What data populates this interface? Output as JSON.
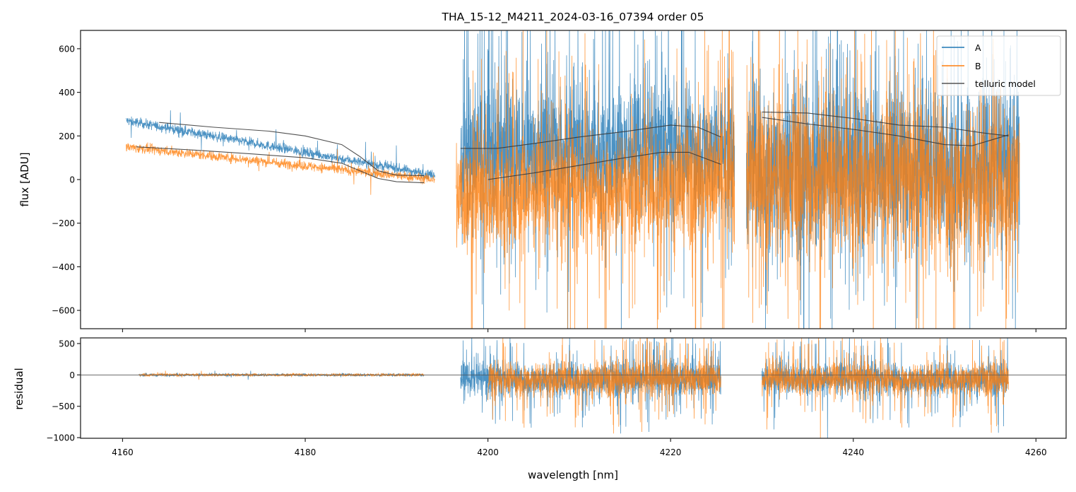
{
  "chart_data": [
    {
      "panel": "flux",
      "type": "line",
      "title": "THA_15-12_M4211_2024-03-16_07394  order 05",
      "xlabel": "",
      "ylabel": "flux [ADU]",
      "xlim": [
        4155.4,
        4263.3
      ],
      "ylim": [
        -684,
        684
      ],
      "xticks": [
        4160,
        4180,
        4200,
        4220,
        4240,
        4260
      ],
      "yticks": [
        -600,
        -400,
        -200,
        0,
        200,
        400,
        600
      ],
      "ytick_labels": [
        "−600",
        "−400",
        "−200",
        "0",
        "200",
        "400",
        "600"
      ],
      "grid": false,
      "legend": {
        "placement": "top-right",
        "entries": [
          {
            "label": "A",
            "color": "#1f77b4"
          },
          {
            "label": "B",
            "color": "#ff7f0e"
          },
          {
            "label": "telluric model",
            "color": "#333333"
          }
        ]
      },
      "series": [
        {
          "name": "A",
          "color": "#1f77b4",
          "segments": [
            {
              "x_range": [
                4160.4,
                4194.2
              ],
              "level_start": 270,
              "level_end": 20,
              "noise": 25
            },
            {
              "x_range": [
                4197.0,
                4227.0
              ],
              "level_start": 120,
              "level_end": 160,
              "noise": 330
            },
            {
              "x_range": [
                4228.3,
                4258.2
              ],
              "level_start": 60,
              "level_end": 60,
              "noise": 420
            }
          ]
        },
        {
          "name": "B",
          "color": "#ff7f0e",
          "segments": [
            {
              "x_range": [
                4160.4,
                4194.2
              ],
              "level_start": 150,
              "level_end": 0,
              "noise": 25
            },
            {
              "x_range": [
                4196.5,
                4227.0
              ],
              "level_start": -80,
              "level_end": 0,
              "noise": 300
            },
            {
              "x_range": [
                4228.3,
                4258.2
              ],
              "level_start": 0,
              "level_end": 0,
              "noise": 420
            }
          ]
        },
        {
          "name": "telluric model A",
          "color": "#333333",
          "points": [
            [
              4164.0,
              262
            ],
            [
              4170.0,
              240
            ],
            [
              4176.0,
              222
            ],
            [
              4180.0,
              200
            ],
            [
              4184.0,
              160
            ],
            [
              4186.0,
              105
            ],
            [
              4188.0,
              40
            ],
            [
              4190.0,
              20
            ],
            [
              4193.0,
              18
            ]
          ],
          "segments_extra": [
            {
              "points": [
                [
                  4197.0,
                  143
                ],
                [
                  4201.0,
                  143
                ],
                [
                  4205.0,
                  165
                ],
                [
                  4210.0,
                  195
                ],
                [
                  4215.0,
                  220
                ],
                [
                  4220.0,
                  250
                ],
                [
                  4223.0,
                  240
                ],
                [
                  4225.5,
                  195
                ]
              ]
            },
            {
              "points": [
                [
                  4230.0,
                  310
                ],
                [
                  4235.0,
                  305
                ],
                [
                  4240.0,
                  280
                ],
                [
                  4245.0,
                  250
                ],
                [
                  4250.0,
                  240
                ],
                [
                  4254.0,
                  215
                ],
                [
                  4257.0,
                  200
                ]
              ]
            }
          ]
        },
        {
          "name": "telluric model B",
          "color": "#333333",
          "points": [
            [
              4161.5,
              150
            ],
            [
              4168.0,
              135
            ],
            [
              4174.0,
              118
            ],
            [
              4180.0,
              100
            ],
            [
              4184.0,
              75
            ],
            [
              4186.0,
              40
            ],
            [
              4188.0,
              5
            ],
            [
              4190.0,
              -10
            ],
            [
              4193.0,
              -15
            ]
          ],
          "segments_extra": [
            {
              "points": [
                [
                  4200.0,
                  0
                ],
                [
                  4205.0,
                  30
                ],
                [
                  4210.0,
                  65
                ],
                [
                  4215.0,
                  100
                ],
                [
                  4219.0,
                  125
                ],
                [
                  4222.0,
                  125
                ],
                [
                  4225.5,
                  70
                ]
              ]
            },
            {
              "points": [
                [
                  4230.0,
                  285
                ],
                [
                  4235.0,
                  255
                ],
                [
                  4240.0,
                  230
                ],
                [
                  4245.0,
                  200
                ],
                [
                  4250.0,
                  160
                ],
                [
                  4253.0,
                  155
                ],
                [
                  4257.0,
                  205
                ]
              ]
            }
          ]
        }
      ]
    },
    {
      "panel": "residual",
      "type": "line",
      "xlabel": "wavelength [nm]",
      "ylabel": "residual",
      "xlim": [
        4155.4,
        4263.3
      ],
      "ylim": [
        -1010,
        590
      ],
      "xticks": [
        4160,
        4180,
        4200,
        4220,
        4240,
        4260
      ],
      "xtick_labels": [
        "4160",
        "4180",
        "4200",
        "4220",
        "4240",
        "4260"
      ],
      "yticks": [
        -1000,
        -500,
        0,
        500
      ],
      "ytick_labels": [
        "−1000",
        "−500",
        "0",
        "500"
      ],
      "reference_line": 0,
      "series": [
        {
          "name": "A",
          "color": "#1f77b4",
          "segments": [
            {
              "x_range": [
                4161.8,
                4193.0
              ],
              "noise": 25
            },
            {
              "x_range": [
                4197.0,
                4225.5
              ],
              "noise": 300
            },
            {
              "x_range": [
                4230.0,
                4257.0
              ],
              "noise": 280
            }
          ]
        },
        {
          "name": "B",
          "color": "#ff7f0e",
          "segments": [
            {
              "x_range": [
                4161.8,
                4193.0
              ],
              "noise": 25
            },
            {
              "x_range": [
                4200.0,
                4225.5
              ],
              "noise": 300
            },
            {
              "x_range": [
                4230.0,
                4257.0
              ],
              "noise": 280
            }
          ]
        }
      ]
    }
  ]
}
